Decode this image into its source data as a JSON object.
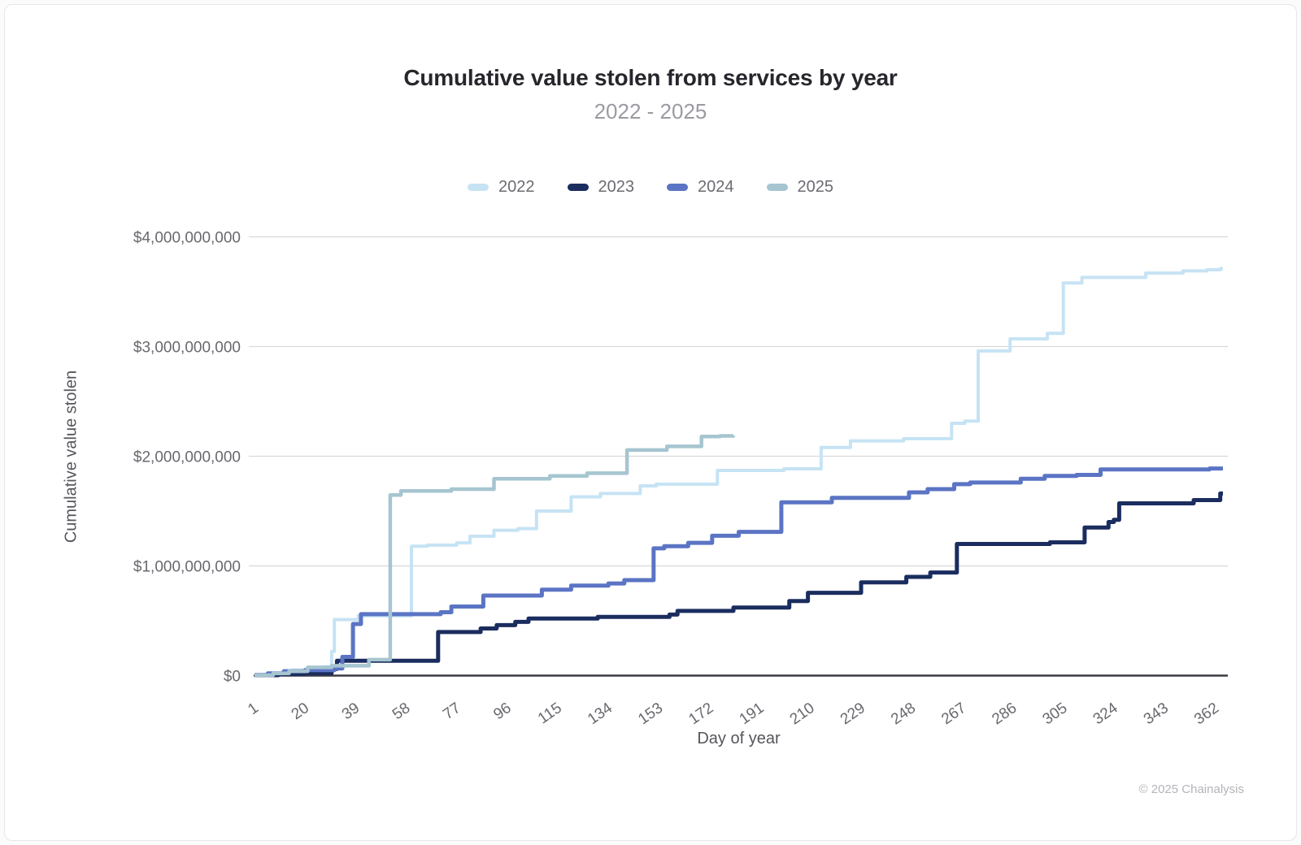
{
  "title": "Cumulative value stolen from services by year",
  "subtitle": "2022 - 2025",
  "footer": "© 2025 Chainalysis",
  "colors": {
    "background": "#ffffff",
    "gridline": "#d9d9dc",
    "zero_axis": "#3b3b40",
    "title_text": "#26262c",
    "subtitle_text": "#9a9aa2",
    "tick_text": "#68686e",
    "axis_title_text": "#55555c",
    "footer_text": "#b4b4b9"
  },
  "chart_data": {
    "type": "line",
    "step": true,
    "title": "Cumulative value stolen from services by year",
    "subtitle": "2022 - 2025",
    "xlabel": "Day of year",
    "ylabel": "Cumulative value stolen",
    "legend_position": "top-center",
    "grid": "horizontal-only",
    "xlim": [
      1,
      365
    ],
    "ylim_busd": [
      0,
      4
    ],
    "x_ticks": [
      1,
      20,
      39,
      58,
      77,
      96,
      115,
      134,
      153,
      172,
      191,
      210,
      229,
      248,
      267,
      286,
      305,
      324,
      343,
      362
    ],
    "y_ticks": [
      {
        "label": "$0",
        "value_busd": 0
      },
      {
        "label": "$1,000,000,000",
        "value_busd": 1
      },
      {
        "label": "$2,000,000,000",
        "value_busd": 2
      },
      {
        "label": "$3,000,000,000",
        "value_busd": 3
      },
      {
        "label": "$4,000,000,000",
        "value_busd": 4
      }
    ],
    "value_unit": "USD billions",
    "series": [
      {
        "name": "2022",
        "color": "#c6e3f4",
        "stroke_width": 4,
        "end_day": 365,
        "points_day_busd": [
          [
            1,
            0.005
          ],
          [
            8,
            0.025
          ],
          [
            15,
            0.05
          ],
          [
            22,
            0.065
          ],
          [
            27,
            0.08
          ],
          [
            30,
            0.22
          ],
          [
            31,
            0.51
          ],
          [
            40,
            0.545
          ],
          [
            60,
            1.18
          ],
          [
            66,
            1.19
          ],
          [
            77,
            1.21
          ],
          [
            82,
            1.27
          ],
          [
            91,
            1.325
          ],
          [
            100,
            1.34
          ],
          [
            107,
            1.5
          ],
          [
            120,
            1.63
          ],
          [
            131,
            1.66
          ],
          [
            146,
            1.73
          ],
          [
            152,
            1.745
          ],
          [
            175,
            1.87
          ],
          [
            200,
            1.885
          ],
          [
            214,
            2.08
          ],
          [
            225,
            2.14
          ],
          [
            245,
            2.16
          ],
          [
            263,
            2.3
          ],
          [
            268,
            2.32
          ],
          [
            273,
            2.96
          ],
          [
            285,
            3.07
          ],
          [
            299,
            3.12
          ],
          [
            305,
            3.58
          ],
          [
            312,
            3.63
          ],
          [
            336,
            3.67
          ],
          [
            350,
            3.69
          ],
          [
            359,
            3.7
          ],
          [
            364,
            3.71
          ]
        ]
      },
      {
        "name": "2023",
        "color": "#1b2d5f",
        "stroke_width": 5,
        "end_day": 365,
        "points_day_busd": [
          [
            1,
            0.004
          ],
          [
            10,
            0.015
          ],
          [
            20,
            0.022
          ],
          [
            30,
            0.06
          ],
          [
            32,
            0.135
          ],
          [
            70,
            0.397
          ],
          [
            86,
            0.43
          ],
          [
            92,
            0.46
          ],
          [
            99,
            0.49
          ],
          [
            104,
            0.52
          ],
          [
            130,
            0.535
          ],
          [
            157,
            0.556
          ],
          [
            160,
            0.59
          ],
          [
            181,
            0.62
          ],
          [
            202,
            0.68
          ],
          [
            209,
            0.755
          ],
          [
            229,
            0.85
          ],
          [
            246,
            0.9
          ],
          [
            255,
            0.94
          ],
          [
            265,
            1.2
          ],
          [
            300,
            1.215
          ],
          [
            313,
            1.35
          ],
          [
            322,
            1.4
          ],
          [
            324,
            1.42
          ],
          [
            326,
            1.57
          ],
          [
            354,
            1.6
          ],
          [
            364,
            1.66
          ]
        ]
      },
      {
        "name": "2024",
        "color": "#5b74c4",
        "stroke_width": 5,
        "end_day": 365,
        "points_day_busd": [
          [
            1,
            0.005
          ],
          [
            6,
            0.02
          ],
          [
            12,
            0.04
          ],
          [
            20,
            0.05
          ],
          [
            31,
            0.065
          ],
          [
            34,
            0.17
          ],
          [
            38,
            0.47
          ],
          [
            41,
            0.56
          ],
          [
            71,
            0.578
          ],
          [
            75,
            0.63
          ],
          [
            87,
            0.73
          ],
          [
            109,
            0.784
          ],
          [
            120,
            0.82
          ],
          [
            134,
            0.84
          ],
          [
            140,
            0.87
          ],
          [
            151,
            1.16
          ],
          [
            155,
            1.18
          ],
          [
            164,
            1.21
          ],
          [
            173,
            1.275
          ],
          [
            183,
            1.31
          ],
          [
            199,
            1.58
          ],
          [
            218,
            1.62
          ],
          [
            247,
            1.67
          ],
          [
            254,
            1.7
          ],
          [
            264,
            1.745
          ],
          [
            270,
            1.76
          ],
          [
            289,
            1.795
          ],
          [
            298,
            1.82
          ],
          [
            310,
            1.83
          ],
          [
            319,
            1.88
          ],
          [
            360,
            1.888
          ]
        ]
      },
      {
        "name": "2025",
        "color": "#a6c5d0",
        "stroke_width": 4.5,
        "end_day": 181,
        "points_day_busd": [
          [
            1,
            0.004
          ],
          [
            8,
            0.02
          ],
          [
            14,
            0.04
          ],
          [
            21,
            0.075
          ],
          [
            30,
            0.09
          ],
          [
            44,
            0.145
          ],
          [
            52,
            1.646
          ],
          [
            56,
            1.683
          ],
          [
            75,
            1.7
          ],
          [
            91,
            1.794
          ],
          [
            112,
            1.82
          ],
          [
            126,
            1.845
          ],
          [
            141,
            2.056
          ],
          [
            156,
            2.09
          ],
          [
            169,
            2.18
          ],
          [
            176,
            2.185
          ],
          [
            181,
            2.187
          ]
        ]
      }
    ]
  }
}
